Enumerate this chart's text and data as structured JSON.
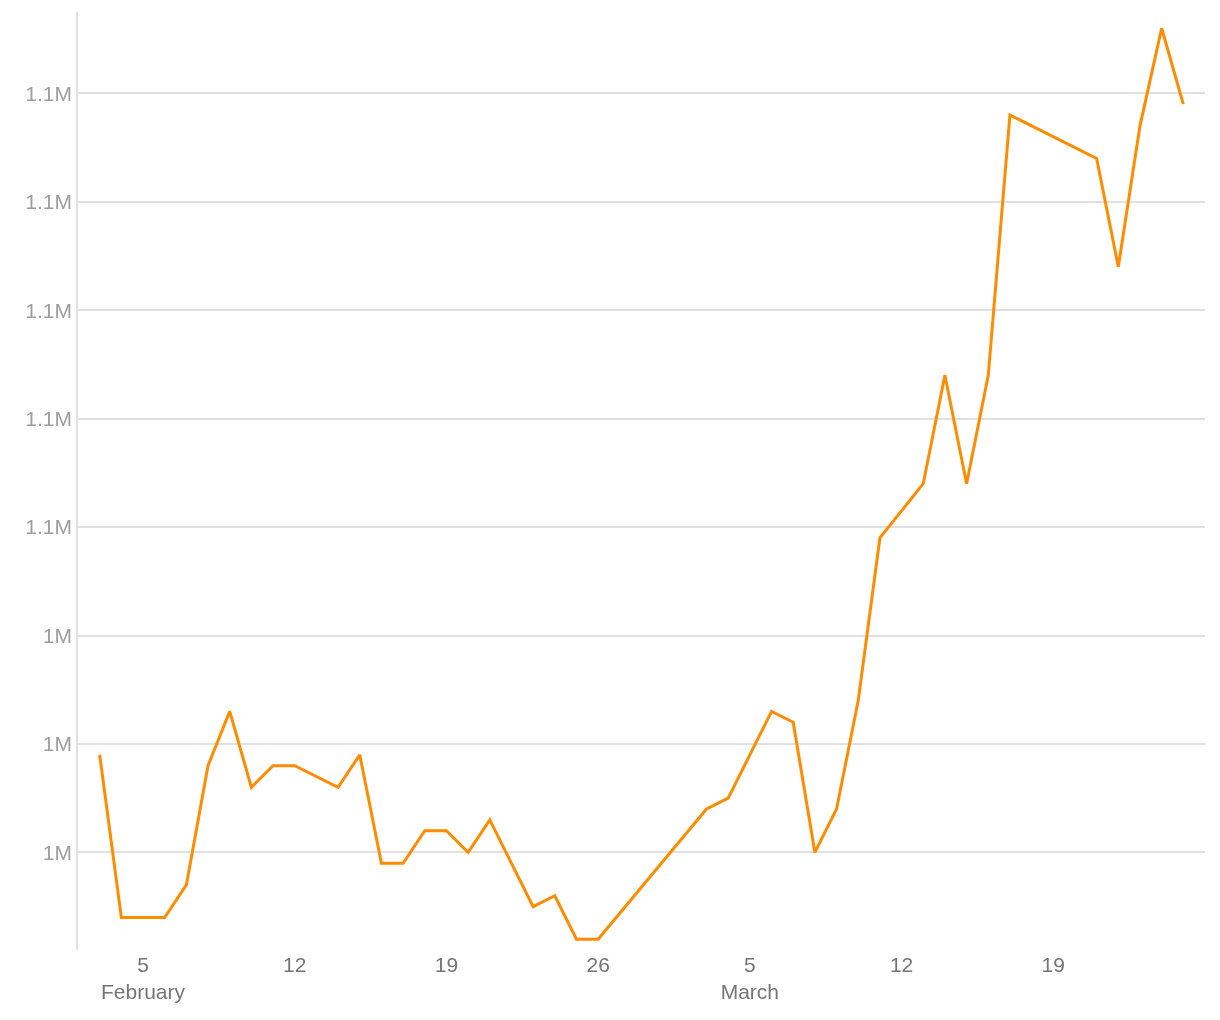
{
  "chart_data": {
    "type": "line",
    "x": [
      "--02-03",
      "--02-04",
      "--02-06",
      "--02-07",
      "--02-08",
      "--02-09",
      "--02-10",
      "--02-11",
      "--02-12",
      "--02-14",
      "--02-15",
      "--02-16",
      "--02-17",
      "--02-18",
      "--02-19",
      "--02-20",
      "--02-21",
      "--02-23",
      "--02-24",
      "--02-25",
      "--02-26",
      "--03-03",
      "--03-04",
      "--03-06",
      "--03-07",
      "--03-08",
      "--03-09",
      "--03-10",
      "--03-11",
      "--03-13",
      "--03-14",
      "--03-15",
      "--03-16",
      "--03-17",
      "--03-21",
      "--03-22",
      "--03-23",
      "--03-24",
      "--03-25"
    ],
    "series": [
      {
        "color": "#ff8c00",
        "values": [
          1018000,
          988000,
          988000,
          994000,
          1016000,
          1026000,
          1012000,
          1016000,
          1016000,
          1012000,
          1018000,
          998000,
          998000,
          1004000,
          1004000,
          1000000,
          1006000,
          990000,
          992000,
          984000,
          984000,
          1008000,
          1010000,
          1026000,
          1024000,
          1000000,
          1008000,
          1028000,
          1058000,
          1068000,
          1088000,
          1068000,
          1088000,
          1136000,
          1128000,
          1108000,
          1134000,
          1152000,
          1138000
        ]
      }
    ],
    "xlim": [
      "--02-02",
      "--03-26"
    ],
    "xticks": [
      {
        "value": "--02-05",
        "label": "5\nFebruary"
      },
      {
        "value": "--02-12",
        "label": "12"
      },
      {
        "value": "--02-19",
        "label": "19"
      },
      {
        "value": "--02-26",
        "label": "26"
      },
      {
        "value": "--03-05",
        "label": "5\nMarch"
      },
      {
        "value": "--03-12",
        "label": "12"
      },
      {
        "value": "--03-19",
        "label": "19"
      }
    ],
    "yticks": [
      {
        "value": 1000000,
        "label": "1M"
      },
      {
        "value": 1020000,
        "label": "1M"
      },
      {
        "value": 1040000,
        "label": "1M"
      },
      {
        "value": 1060000,
        "label": "1.1M"
      },
      {
        "value": 1080000,
        "label": "1.1M"
      },
      {
        "value": 1100000,
        "label": "1.1M"
      },
      {
        "value": 1120000,
        "label": "1.1M"
      },
      {
        "value": 1140000,
        "label": "1.1M"
      }
    ],
    "ylim": [
      982000,
      1155000
    ],
    "grid": "y",
    "marker": "none",
    "line_style": "solid"
  }
}
